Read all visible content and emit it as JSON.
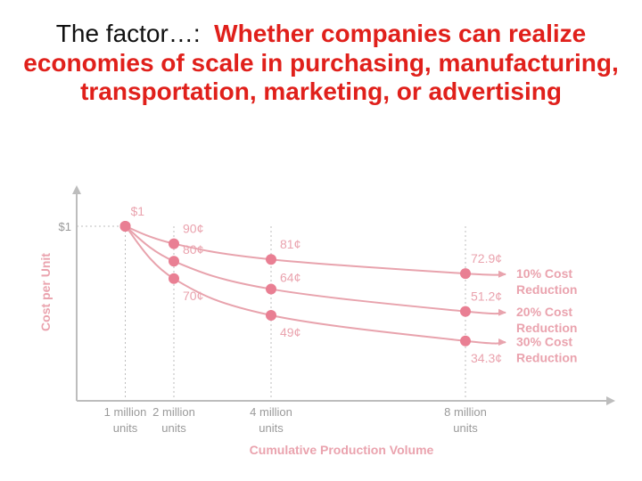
{
  "slide": {
    "title_lead": "The factor…:",
    "title_emphasis": "Whether companies can realize economies of scale in purchasing, manufacturing, transportation, marketing, or advertising"
  },
  "colors": {
    "accent": "#e0201b",
    "chart_line": "#e8a3ad",
    "chart_point": "#e97f93",
    "chart_text": "#eaa3ae",
    "axis": "#bdbdbd",
    "tick_text": "#9a9a9a"
  },
  "chart_data": {
    "type": "line",
    "xlabel": "Cumulative Production Volume",
    "ylabel": "Cost per Unit",
    "x_ticks": [
      {
        "x": 1,
        "line1": "1 million",
        "line2": "units"
      },
      {
        "x": 2,
        "line1": "2 million",
        "line2": "units"
      },
      {
        "x": 4,
        "line1": "4 million",
        "line2": "units"
      },
      {
        "x": 8,
        "line1": "8 million",
        "line2": "units"
      }
    ],
    "y_ticks": [
      {
        "y": 1.0,
        "label": "$1"
      }
    ],
    "xlim": [
      0,
      10
    ],
    "ylim": [
      0,
      1.15
    ],
    "series": [
      {
        "name": "10% Cost Reduction",
        "label_line1": "10% Cost",
        "label_line2": "Reduction",
        "points": [
          {
            "x": 1,
            "y": 1.0,
            "label": "$1"
          },
          {
            "x": 2,
            "y": 0.9,
            "label": "90¢"
          },
          {
            "x": 4,
            "y": 0.81,
            "label": "81¢"
          },
          {
            "x": 8,
            "y": 0.729,
            "label": "72.9¢"
          }
        ]
      },
      {
        "name": "20% Cost Reduction",
        "label_line1": "20% Cost",
        "label_line2": "Reduction",
        "points": [
          {
            "x": 1,
            "y": 1.0,
            "label": ""
          },
          {
            "x": 2,
            "y": 0.8,
            "label": "80¢"
          },
          {
            "x": 4,
            "y": 0.64,
            "label": "64¢"
          },
          {
            "x": 8,
            "y": 0.512,
            "label": "51.2¢"
          }
        ]
      },
      {
        "name": "30% Cost Reduction",
        "label_line1": "30% Cost",
        "label_line2": "Reduction",
        "points": [
          {
            "x": 1,
            "y": 1.0,
            "label": ""
          },
          {
            "x": 2,
            "y": 0.7,
            "label": "70¢"
          },
          {
            "x": 4,
            "y": 0.49,
            "label": "49¢"
          },
          {
            "x": 8,
            "y": 0.343,
            "label": "34.3¢"
          }
        ]
      }
    ],
    "grid": false,
    "legend": "inline-right"
  }
}
